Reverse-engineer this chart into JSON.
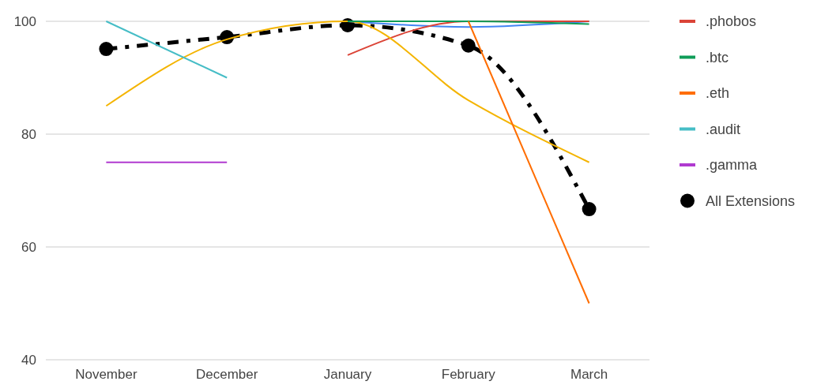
{
  "chart_data": {
    "type": "line",
    "categories": [
      "November",
      "December",
      "January",
      "February",
      "March"
    ],
    "series": [
      {
        "color": "#4285f4",
        "values": [
          null,
          null,
          100,
          99,
          100
        ]
      },
      {
        "name": ".phobos",
        "color": "#db4437",
        "values": [
          null,
          null,
          94,
          100,
          100
        ]
      },
      {
        "color": "#f4b400",
        "values": [
          85,
          96.8,
          100,
          86,
          75
        ]
      },
      {
        "name": ".btc",
        "color": "#0f9d58",
        "values": [
          null,
          null,
          100,
          100,
          99.5
        ]
      },
      {
        "name": ".eth",
        "color": "#ff6d00",
        "values": [
          null,
          null,
          null,
          100,
          50
        ]
      },
      {
        "name": ".audit",
        "color": "#46bdc6",
        "values": [
          100,
          90,
          null,
          null,
          null
        ]
      },
      {
        "name": ".gamma",
        "color": "#b03ad0",
        "values": [
          75,
          75,
          null,
          null,
          null
        ]
      },
      {
        "name": "All Extensions",
        "color": "#000000",
        "values": [
          95.1,
          97.2,
          99.3,
          95.7,
          66.7
        ],
        "marker": "circle",
        "line_style": "dashed"
      }
    ],
    "ylim": [
      40,
      100
    ],
    "yticks": [
      40,
      60,
      80,
      100
    ],
    "grid": "y",
    "legend": "right"
  }
}
